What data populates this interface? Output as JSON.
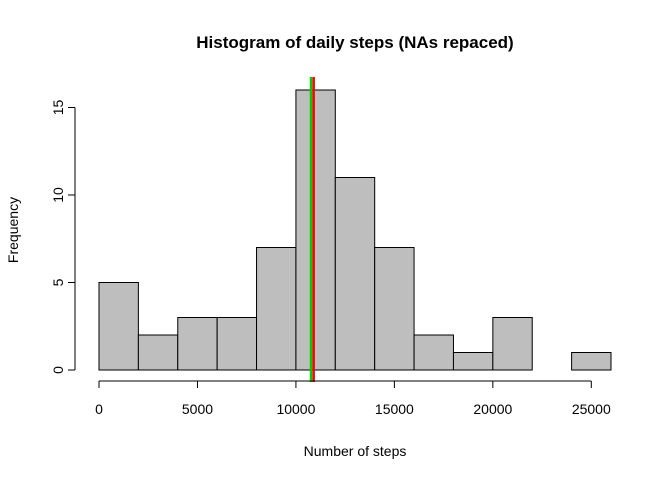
{
  "chart_data": {
    "type": "bar",
    "title": "Histogram of daily steps (NAs repaced)",
    "xlabel": "Number of steps",
    "ylabel": "Frequency",
    "bin_edges": [
      0,
      2000,
      4000,
      6000,
      8000,
      10000,
      12000,
      14000,
      16000,
      18000,
      20000,
      22000,
      24000,
      26000
    ],
    "values": [
      5,
      2,
      3,
      3,
      7,
      16,
      11,
      7,
      2,
      1,
      3,
      0,
      1
    ],
    "xlim": [
      0,
      26000
    ],
    "ylim": [
      0,
      16
    ],
    "x_ticks": [
      0,
      5000,
      10000,
      15000,
      20000,
      25000
    ],
    "x_tick_labels": [
      "0",
      "5000",
      "10000",
      "15000",
      "20000",
      "25000"
    ],
    "y_ticks": [
      0,
      5,
      10,
      15
    ],
    "y_tick_labels": [
      "0",
      "5",
      "10",
      "15"
    ],
    "bar_color": "#bebebe",
    "bar_border_color": "#000000",
    "reference_lines": [
      {
        "x": 10766,
        "color": "#00cc00"
      },
      {
        "x": 10900,
        "color": "#ff0000"
      }
    ],
    "grid": false
  }
}
